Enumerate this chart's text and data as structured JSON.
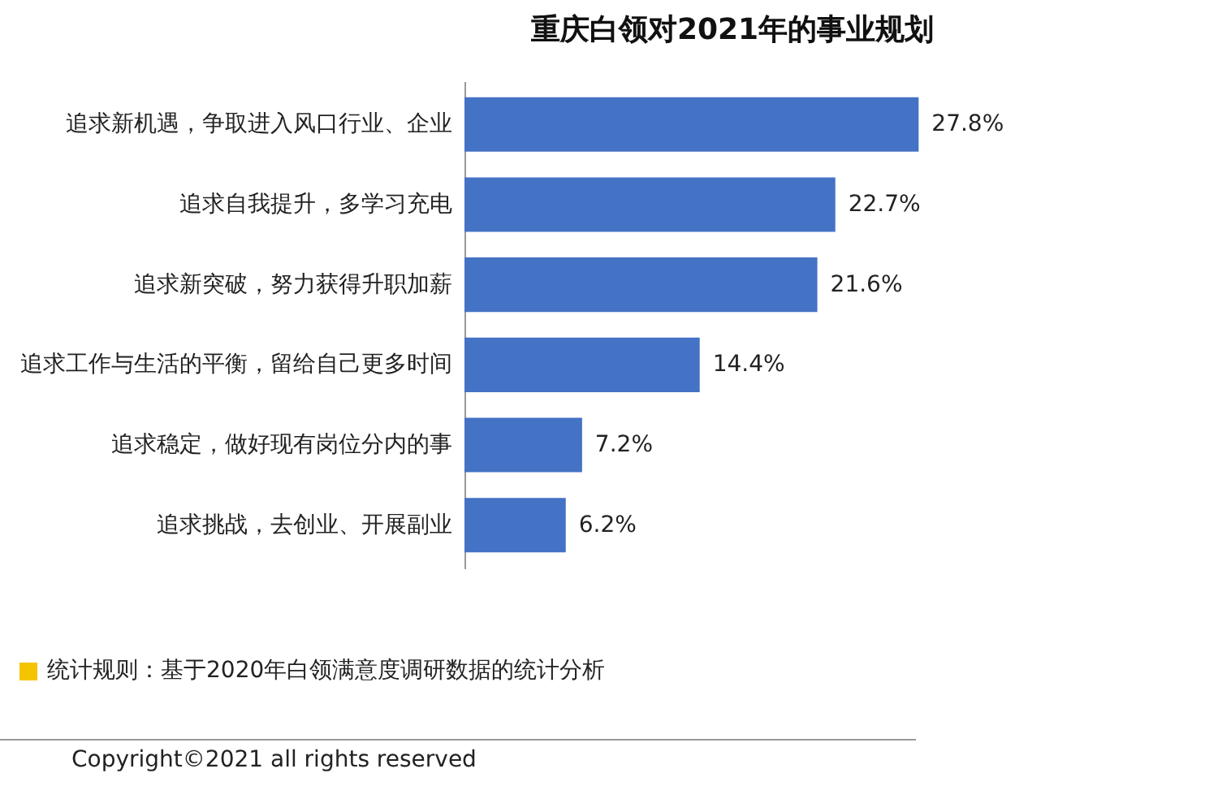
{
  "chart_data": {
    "type": "bar",
    "orientation": "horizontal",
    "title": "重庆白领对2021年的事业规划",
    "categories": [
      "追求新机遇，争取进入风口行业、企业",
      "追求自我提升，多学习充电",
      "追求新突破，努力获得升职加薪",
      "追求工作与生活的平衡，留给自己更多时间",
      "追求稳定，做好现有岗位分内的事",
      "追求挑战，去创业、开展副业"
    ],
    "values": [
      27.8,
      22.7,
      21.6,
      14.4,
      7.2,
      6.2
    ],
    "value_labels": [
      "27.8%",
      "22.7%",
      "21.6%",
      "14.4%",
      "7.2%",
      "6.2%"
    ],
    "color": "#4472c4",
    "grid": false,
    "annotations": [
      "统计规则：基于2020年白领满意度调研数据的统计分析",
      "Copyright©2021 all rights reserved"
    ]
  }
}
